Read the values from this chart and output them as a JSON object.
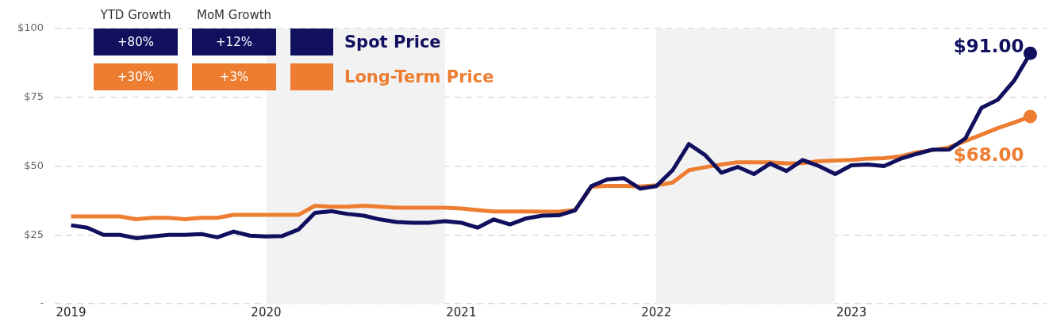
{
  "chart_data": {
    "type": "line",
    "x": [
      "2019-01",
      "2019-02",
      "2019-03",
      "2019-04",
      "2019-05",
      "2019-06",
      "2019-07",
      "2019-08",
      "2019-09",
      "2019-10",
      "2019-11",
      "2019-12",
      "2020-01",
      "2020-02",
      "2020-03",
      "2020-04",
      "2020-05",
      "2020-06",
      "2020-07",
      "2020-08",
      "2020-09",
      "2020-10",
      "2020-11",
      "2020-12",
      "2021-01",
      "2021-02",
      "2021-03",
      "2021-04",
      "2021-05",
      "2021-06",
      "2021-07",
      "2021-08",
      "2021-09",
      "2021-10",
      "2021-11",
      "2021-12",
      "2022-01",
      "2022-02",
      "2022-03",
      "2022-04",
      "2022-05",
      "2022-06",
      "2022-07",
      "2022-08",
      "2022-09",
      "2022-10",
      "2022-11",
      "2022-12",
      "2023-01",
      "2023-02",
      "2023-03",
      "2023-04",
      "2023-05",
      "2023-06",
      "2023-07",
      "2023-08",
      "2023-09",
      "2023-10",
      "2023-11",
      "2023-12"
    ],
    "series": [
      {
        "name": "Spot Price",
        "color": "#10105f",
        "values": [
          28.5,
          27.6,
          25,
          25,
          23.8,
          24.4,
          25,
          25,
          25.3,
          24.1,
          26.2,
          24.7,
          24.4,
          24.6,
          27,
          33,
          33.6,
          32.6,
          32,
          30.6,
          29.7,
          29.4,
          29.4,
          30,
          29.4,
          27.6,
          30.6,
          28.8,
          31,
          32,
          32.1,
          33.9,
          42.7,
          45.2,
          45.6,
          41.8,
          42.7,
          48.5,
          58,
          54,
          47.6,
          49.7,
          47.1,
          50.9,
          48.2,
          52.2,
          50,
          47.1,
          50.3,
          50.6,
          50,
          52.6,
          54.4,
          56,
          56,
          60,
          71.2,
          74.1,
          81,
          91
        ],
        "value_labels": [
          null,
          null,
          null,
          null,
          null,
          null,
          null,
          null,
          null,
          null,
          null,
          null,
          null,
          null,
          null,
          null,
          null,
          null,
          null,
          null,
          null,
          null,
          null,
          null,
          null,
          null,
          null,
          null,
          null,
          null,
          null,
          null,
          null,
          null,
          null,
          null,
          null,
          null,
          null,
          null,
          null,
          null,
          null,
          null,
          null,
          null,
          null,
          null,
          null,
          null,
          null,
          null,
          null,
          null,
          null,
          null,
          null,
          null,
          null,
          "$91.00"
        ]
      },
      {
        "name": "Long-Term Price",
        "color": "#ed7d31",
        "values": [
          31.7,
          31.7,
          31.7,
          31.7,
          30.7,
          31.2,
          31.2,
          30.7,
          31.2,
          31.2,
          32.3,
          32.3,
          32.3,
          32.3,
          32.3,
          35.6,
          35.2,
          35.2,
          35.6,
          35.2,
          34.9,
          34.9,
          34.9,
          34.9,
          34.6,
          34,
          33.5,
          33.5,
          33.5,
          33.4,
          33.4,
          34,
          42.5,
          42.8,
          42.8,
          42.6,
          43,
          44,
          48.5,
          49.6,
          50.6,
          51.4,
          51.4,
          51.4,
          51,
          51.1,
          51.8,
          52,
          52.2,
          52.7,
          52.9,
          53.5,
          55,
          55.8,
          56.8,
          59.1,
          61.4,
          63.8,
          65.8,
          68
        ],
        "value_labels": [
          null,
          null,
          null,
          null,
          null,
          null,
          null,
          null,
          null,
          null,
          null,
          null,
          null,
          null,
          null,
          null,
          null,
          null,
          null,
          null,
          null,
          null,
          null,
          null,
          null,
          null,
          null,
          null,
          null,
          null,
          null,
          null,
          null,
          null,
          null,
          null,
          null,
          null,
          null,
          null,
          null,
          null,
          null,
          null,
          null,
          null,
          null,
          null,
          null,
          null,
          null,
          null,
          null,
          null,
          null,
          null,
          null,
          null,
          null,
          "$68.00"
        ]
      }
    ],
    "xlim": [
      "2018-12",
      "2024-01"
    ],
    "xticks": [
      {
        "value": "2019-01",
        "label": "2019"
      },
      {
        "value": "2020-01",
        "label": "2020"
      },
      {
        "value": "2021-01",
        "label": "2021"
      },
      {
        "value": "2022-01",
        "label": "2022"
      },
      {
        "value": "2023-01",
        "label": "2023"
      }
    ],
    "ylim": [
      0,
      100
    ],
    "yticks": [
      {
        "value": 0,
        "label": "-"
      },
      {
        "value": 25,
        "label": "$25"
      },
      {
        "value": 50,
        "label": "$50"
      },
      {
        "value": 75,
        "label": "$75"
      },
      {
        "value": 100,
        "label": "$100"
      }
    ],
    "bands": [
      {
        "axis": "x",
        "from": "2020-01",
        "to": "2020-12",
        "color": "#f2f2f2"
      },
      {
        "axis": "x",
        "from": "2022-01",
        "to": "2022-12",
        "color": "#f2f2f2"
      }
    ],
    "annotations": [
      "YTD Growth",
      "MoM Growth",
      "+80%",
      "+12%",
      "+30%",
      "+3%"
    ],
    "grid": "y",
    "legend": "top left"
  }
}
